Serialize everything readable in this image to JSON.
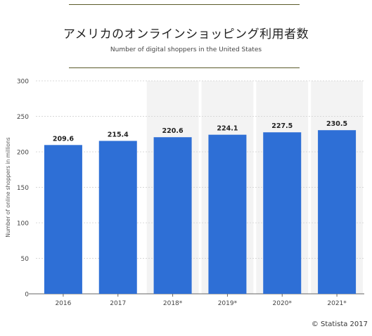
{
  "title": "アメリカのオンラインショッピング利用者数",
  "subtitle": "Number of digital shoppers in the United States",
  "credit": "© Statista 2017",
  "colors": {
    "bar": "#2e6fd6",
    "forecast_band": "#f3f3f3",
    "grid": "#d8d8d8",
    "axis": "#666666"
  },
  "chart_data": {
    "type": "bar",
    "categories": [
      "2016",
      "2017",
      "2018*",
      "2019*",
      "2020*",
      "2021*"
    ],
    "values": [
      209.6,
      215.4,
      220.6,
      224.1,
      227.5,
      230.5
    ],
    "value_labels": [
      "209.6",
      "215.4",
      "220.6",
      "224.1",
      "227.5",
      "230.5"
    ],
    "ylabel": "Number of online shoppers in millions",
    "xlabel": "",
    "ylim": [
      0,
      300
    ],
    "yticks": [
      0,
      50,
      100,
      150,
      200,
      250,
      300
    ],
    "grid": true,
    "shaded_categories": [
      "2018*",
      "2019*",
      "2020*",
      "2021*"
    ]
  }
}
